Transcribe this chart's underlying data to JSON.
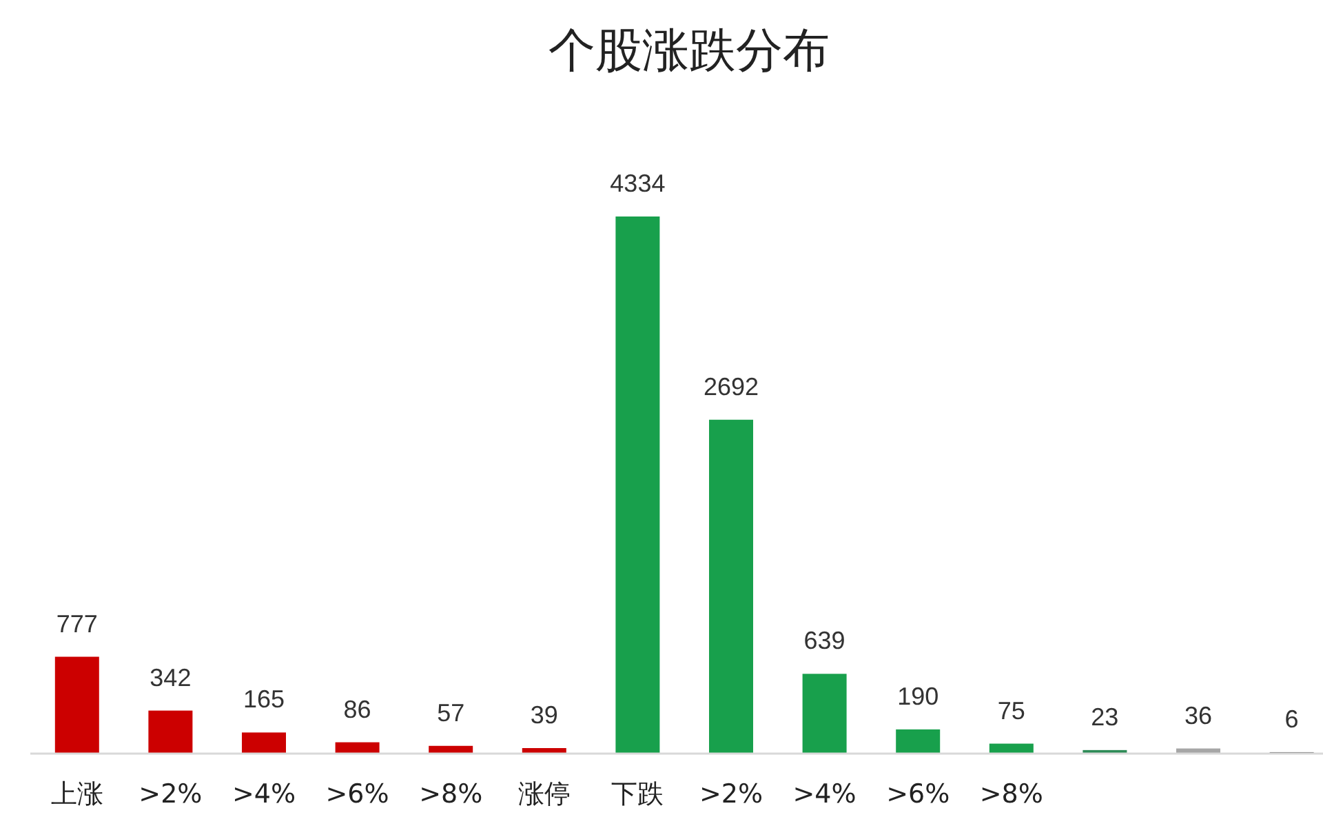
{
  "chart_data": {
    "type": "bar",
    "title": "个股涨跌分布",
    "categories": [
      "上涨",
      ">2%",
      ">4%",
      ">6%",
      ">8%",
      "涨停",
      "下跌",
      ">2%",
      ">4%",
      ">6%",
      ">8%",
      null,
      null,
      null
    ],
    "values": [
      777,
      342,
      165,
      86,
      57,
      39,
      4334,
      2692,
      639,
      190,
      75,
      23,
      36,
      6
    ],
    "colors": [
      "#cc0000",
      "#cc0000",
      "#cc0000",
      "#cc0000",
      "#cc0000",
      "#cc0000",
      "#18a04c",
      "#18a04c",
      "#18a04c",
      "#18a04c",
      "#18a04c",
      "#2e8b57",
      "#a6a6a6",
      "#595959"
    ],
    "data_labels": true
  }
}
